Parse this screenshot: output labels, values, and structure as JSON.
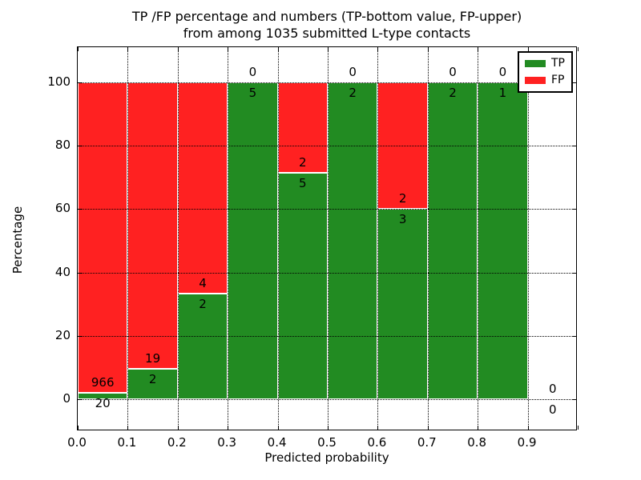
{
  "figure": {
    "title_line1": "TP /FP percentage and numbers (TP-bottom value, FP-upper)",
    "title_line2": "from among 1035 submitted L-type contacts"
  },
  "chart_data": {
    "type": "bar",
    "variant": "percentage-stacked",
    "title": "TP /FP percentage and numbers (TP-bottom value, FP-upper) from among 1035 submitted L-type contacts",
    "xlabel": "Predicted probability",
    "ylabel": "Percentage",
    "xlim": [
      0.0,
      1.0
    ],
    "ylim": [
      0,
      100
    ],
    "grid": "dotted",
    "legend_position": "upper right",
    "bin_edges": [
      0.0,
      0.1,
      0.2,
      0.3,
      0.4,
      0.5,
      0.6,
      0.7,
      0.8,
      0.9,
      1.0
    ],
    "xticks": [
      "0.0",
      "0.1",
      "0.2",
      "0.3",
      "0.4",
      "0.5",
      "0.6",
      "0.7",
      "0.8",
      "0.9"
    ],
    "yticks": [
      0,
      20,
      40,
      60,
      80,
      100
    ],
    "series": [
      {
        "name": "TP",
        "color": "#228B22",
        "values": [
          20,
          2,
          2,
          5,
          5,
          2,
          3,
          2,
          1,
          0
        ]
      },
      {
        "name": "FP",
        "color": "#FF2121",
        "values": [
          966,
          19,
          4,
          0,
          2,
          0,
          2,
          0,
          0,
          0
        ]
      }
    ],
    "tp_percent_per_bin": [
      2.0,
      9.5,
      33.3,
      100,
      71.4,
      100,
      60,
      100,
      100,
      0
    ],
    "total_contacts": 1035
  }
}
